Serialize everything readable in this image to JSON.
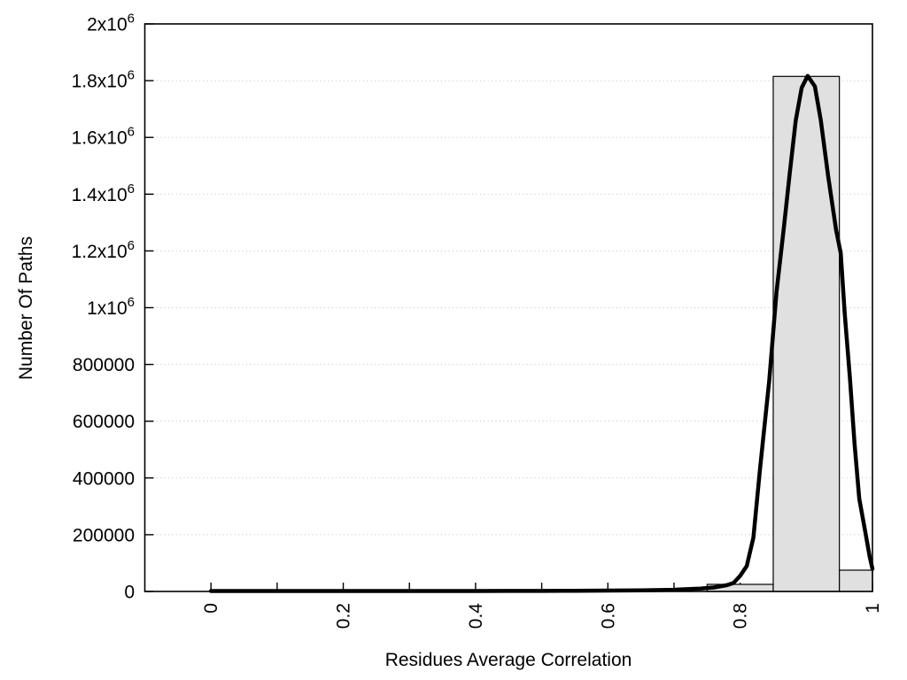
{
  "chart_data": {
    "type": "bar",
    "subtype": "histogram-with-fit-curve",
    "title": "",
    "xlabel": "Residues Average Correlation",
    "ylabel": "Number Of Paths",
    "xlim": [
      -0.1,
      1.0
    ],
    "ylim": [
      0,
      2000000
    ],
    "grid": "horizontal-dotted",
    "legend": "none",
    "x_tick_rotation": -90,
    "x_ticks": [
      {
        "value": 0.0,
        "label": "0"
      },
      {
        "value": 0.1,
        "label": ""
      },
      {
        "value": 0.2,
        "label": "0.2"
      },
      {
        "value": 0.3,
        "label": ""
      },
      {
        "value": 0.4,
        "label": "0.4"
      },
      {
        "value": 0.5,
        "label": ""
      },
      {
        "value": 0.6,
        "label": "0.6"
      },
      {
        "value": 0.7,
        "label": ""
      },
      {
        "value": 0.8,
        "label": "0.8"
      },
      {
        "value": 0.9,
        "label": ""
      },
      {
        "value": 1.0,
        "label": "1"
      }
    ],
    "y_ticks": [
      {
        "value": 0,
        "base": "0",
        "exp": ""
      },
      {
        "value": 200000,
        "base": "200000",
        "exp": ""
      },
      {
        "value": 400000,
        "base": "400000",
        "exp": ""
      },
      {
        "value": 600000,
        "base": "600000",
        "exp": ""
      },
      {
        "value": 800000,
        "base": "800000",
        "exp": ""
      },
      {
        "value": 1000000,
        "base": "1x10",
        "exp": "6"
      },
      {
        "value": 1200000,
        "base": "1.2x10",
        "exp": "6"
      },
      {
        "value": 1400000,
        "base": "1.4x10",
        "exp": "6"
      },
      {
        "value": 1600000,
        "base": "1.6x10",
        "exp": "6"
      },
      {
        "value": 1800000,
        "base": "1.8x10",
        "exp": "6"
      },
      {
        "value": 2000000,
        "base": "2x10",
        "exp": "6"
      }
    ],
    "bars": [
      {
        "from": 0.75,
        "to": 0.85,
        "value": 25000
      },
      {
        "from": 0.85,
        "to": 0.95,
        "value": 1815000
      },
      {
        "from": 0.95,
        "to": 1.0,
        "value": 75000
      }
    ],
    "curve": {
      "name": "fit-curve",
      "points": [
        [
          0.0,
          1500
        ],
        [
          0.05,
          1500
        ],
        [
          0.1,
          1500
        ],
        [
          0.15,
          1500
        ],
        [
          0.2,
          1500
        ],
        [
          0.25,
          1500
        ],
        [
          0.3,
          1500
        ],
        [
          0.35,
          1500
        ],
        [
          0.4,
          1600
        ],
        [
          0.45,
          1800
        ],
        [
          0.5,
          2000
        ],
        [
          0.55,
          2500
        ],
        [
          0.6,
          3000
        ],
        [
          0.65,
          4000
        ],
        [
          0.68,
          5000
        ],
        [
          0.7,
          6000
        ],
        [
          0.72,
          8000
        ],
        [
          0.74,
          10000
        ],
        [
          0.76,
          14000
        ],
        [
          0.78,
          22000
        ],
        [
          0.79,
          30000
        ],
        [
          0.8,
          55000
        ],
        [
          0.81,
          90000
        ],
        [
          0.82,
          190000
        ],
        [
          0.83,
          430000
        ],
        [
          0.844,
          744000
        ],
        [
          0.855,
          1056000
        ],
        [
          0.866,
          1280000
        ],
        [
          0.875,
          1473000
        ],
        [
          0.884,
          1660000
        ],
        [
          0.893,
          1775000
        ],
        [
          0.902,
          1817000
        ],
        [
          0.913,
          1780000
        ],
        [
          0.922,
          1660000
        ],
        [
          0.933,
          1463000
        ],
        [
          0.945,
          1275000
        ],
        [
          0.952,
          1192000
        ],
        [
          0.958,
          983000
        ],
        [
          0.966,
          750000
        ],
        [
          0.973,
          520000
        ],
        [
          0.98,
          327000
        ],
        [
          0.989,
          212000
        ],
        [
          0.996,
          120000
        ],
        [
          1.0,
          80000
        ]
      ]
    },
    "colors": {
      "background": "#ffffff",
      "bar_fill": "#e0e0e0",
      "bar_border": "#000000",
      "curve": "#000000",
      "grid": "#bcbcbc",
      "axis": "#000000",
      "text": "#000000"
    }
  }
}
